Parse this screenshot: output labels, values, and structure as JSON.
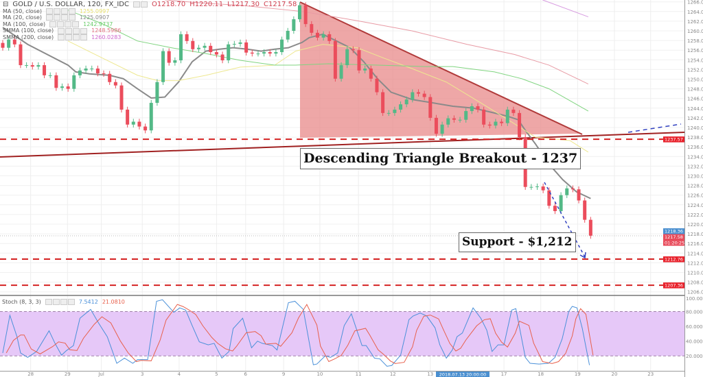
{
  "header": {
    "symbol": "GOLD / U.S. DOLLAR, 120, FX_IDC",
    "open": "O1218.70",
    "high": "H1220.11",
    "low": "L1217.30",
    "close": "C1217.58"
  },
  "indicators": [
    {
      "label": "MA (50, close)",
      "value": "1255.0997",
      "color": "#e8e070"
    },
    {
      "label": "MA (20, close)",
      "value": "1225.0907",
      "color": "#888888"
    },
    {
      "label": "MA (100, close)",
      "value": "1242.9737",
      "color": "#66cc66"
    },
    {
      "label": "SMMA (100, close)",
      "value": "1248.5986",
      "color": "#e07080"
    },
    {
      "label": "SMMA (200, close)",
      "value": "1260.0283",
      "color": "#cc66cc"
    }
  ],
  "stoch": {
    "label": "Stoch (8, 3, 3)",
    "k_value": "7.5412",
    "d_value": "21.0810",
    "k_color": "#4a90d9",
    "d_color": "#e8604c",
    "band_color": "#e6c8f8"
  },
  "annotations": {
    "triangle_label": "Descending Triangle Breakout - 1237",
    "support_label": "Support - $1,212"
  },
  "price_labels": [
    {
      "text": "1237.57",
      "price": 1237.57,
      "color": "#e8202a"
    },
    {
      "text": "1218.36",
      "price": 1218.36,
      "color": "#4a8fd0"
    },
    {
      "text": "1217.58",
      "price": 1217.58,
      "color": "#e84a5a"
    },
    {
      "text": "01:20:25",
      "price": 1216.5,
      "color": "#e84a5a"
    },
    {
      "text": "1212.76",
      "price": 1212.76,
      "color": "#e8202a"
    },
    {
      "text": "1207.36",
      "price": 1207.36,
      "color": "#e8202a"
    }
  ],
  "crosshair_label": "2018.07.13 20:00:00",
  "colors": {
    "up": "#53b987",
    "down": "#eb4d5c",
    "triangle_fill": "#e88a8a",
    "line_red": "#a02020",
    "dash_blue": "#3040c0"
  },
  "chart_data": {
    "type": "candlestick",
    "title": "GOLD / U.S. DOLLAR, 120, FX_IDC",
    "ylim": [
      1205,
      1267
    ],
    "y_ticks": [
      1206,
      1208,
      1210,
      1212,
      1214,
      1216,
      1218,
      1220,
      1222,
      1224,
      1226,
      1228,
      1230,
      1232,
      1234,
      1236,
      1238,
      1240,
      1242,
      1244,
      1246,
      1248,
      1250,
      1252,
      1254,
      1256,
      1258,
      1260,
      1262,
      1264,
      1266
    ],
    "x_ticks": [
      {
        "label": "28",
        "bar": 4.7
      },
      {
        "label": "29",
        "bar": 10.9
      },
      {
        "label": "Jul",
        "bar": 16.6
      },
      {
        "label": "3",
        "bar": 23.5
      },
      {
        "label": "4",
        "bar": 29.7
      },
      {
        "label": "5",
        "bar": 36
      },
      {
        "label": "6",
        "bar": 40.9
      },
      {
        "label": "9",
        "bar": 47.3
      },
      {
        "label": "10",
        "bar": 53.4
      },
      {
        "label": "11",
        "bar": 59.9
      },
      {
        "label": "12",
        "bar": 65.7
      },
      {
        "label": "13",
        "bar": 72
      },
      {
        "label": "17",
        "bar": 84.4
      },
      {
        "label": "18",
        "bar": 90.6
      },
      {
        "label": "19",
        "bar": 96.8
      },
      {
        "label": "20",
        "bar": 103
      },
      {
        "label": "23",
        "bar": 109.1
      }
    ],
    "closes": [
      1256.5,
      1258.2,
      1257.2,
      1252.9,
      1252.9,
      1252.6,
      1252.9,
      1250.8,
      1250.8,
      1248.2,
      1248.5,
      1248,
      1250.8,
      1251.8,
      1252.2,
      1252.2,
      1251.2,
      1251.1,
      1249.4,
      1248.7,
      1243.7,
      1240.6,
      1241.2,
      1240.2,
      1239.4,
      1245.1,
      1249.4,
      1255.8,
      1253.4,
      1253.9,
      1259.3,
      1257.9,
      1256.2,
      1256.5,
      1256.9,
      1255.6,
      1255.1,
      1253.9,
      1257.2,
      1257.3,
      1257.6,
      1255.5,
      1255.3,
      1255.3,
      1255.6,
      1255.3,
      1255.6,
      1258.2,
      1260,
      1262.4,
      1265.3,
      1261.4,
      1259.6,
      1258.6,
      1259.3,
      1257.9,
      1250.1,
      1252.9,
      1256.2,
      1256,
      1251.8,
      1252.2,
      1250.1,
      1247.3,
      1243,
      1243,
      1243.7,
      1244.8,
      1245.8,
      1247.3,
      1247,
      1246.3,
      1242,
      1238.7,
      1240.6,
      1241.9,
      1241.6,
      1241.6,
      1243.4,
      1244.4,
      1243.7,
      1240.6,
      1240.4,
      1241.2,
      1240.9,
      1243.7,
      1243,
      1238,
      1227.7,
      1227.7,
      1227.8,
      1227,
      1223.8,
      1222.7,
      1226,
      1227.4,
      1227.2,
      1224.9,
      1220.9,
      1217.58
    ],
    "moving_averages": [
      {
        "name": "MA (20, close)",
        "color": "#8a8a8a",
        "points": [
          [
            0,
            1260.7
          ],
          [
            4.2,
            1257.2
          ],
          [
            11,
            1252.9
          ],
          [
            12.3,
            1251.5
          ],
          [
            14.6,
            1251.1
          ],
          [
            18,
            1250.8
          ],
          [
            20.3,
            1250.1
          ],
          [
            22.7,
            1248
          ],
          [
            25,
            1246.1
          ],
          [
            27.3,
            1246.3
          ],
          [
            29.6,
            1249.4
          ],
          [
            31.9,
            1253.6
          ],
          [
            34.2,
            1255.8
          ],
          [
            36.5,
            1256.2
          ],
          [
            38.8,
            1256.5
          ],
          [
            41.2,
            1256.2
          ],
          [
            43.5,
            1255.8
          ],
          [
            45.8,
            1256.2
          ],
          [
            48.1,
            1256.5
          ],
          [
            50.4,
            1257.6
          ],
          [
            51.6,
            1258.6
          ],
          [
            53.9,
            1259.3
          ],
          [
            56.2,
            1257.9
          ],
          [
            58.5,
            1256.5
          ],
          [
            60.8,
            1253.6
          ],
          [
            63.1,
            1250.1
          ],
          [
            65.4,
            1247.3
          ],
          [
            68.9,
            1245.8
          ],
          [
            72.4,
            1245.1
          ],
          [
            75.8,
            1244.4
          ],
          [
            79.3,
            1244
          ],
          [
            82.8,
            1243
          ],
          [
            85.1,
            1242.3
          ],
          [
            86.8,
            1241.6
          ],
          [
            88,
            1239.4
          ],
          [
            89.7,
            1236.6
          ],
          [
            92,
            1232.4
          ],
          [
            94.3,
            1229.2
          ],
          [
            96.6,
            1226.7
          ],
          [
            99,
            1225.3
          ]
        ]
      },
      {
        "name": "MA (50, close)",
        "color": "#eee890",
        "points": [
          [
            11,
            1257.9
          ],
          [
            16.9,
            1254.3
          ],
          [
            22.7,
            1250.8
          ],
          [
            26.1,
            1249.7
          ],
          [
            29.6,
            1249.7
          ],
          [
            34.2,
            1250.8
          ],
          [
            40,
            1252.5
          ],
          [
            45.8,
            1252.9
          ],
          [
            49.3,
            1255.8
          ],
          [
            53.9,
            1257.2
          ],
          [
            59.7,
            1256.5
          ],
          [
            64.3,
            1254.3
          ],
          [
            68.9,
            1252.2
          ],
          [
            74.7,
            1249.4
          ],
          [
            80.5,
            1245.1
          ],
          [
            85.1,
            1241.6
          ],
          [
            89.7,
            1238
          ],
          [
            95.5,
            1237.3
          ],
          [
            98.6,
            1234.9
          ]
        ]
      },
      {
        "name": "MA (100, close)",
        "color": "#7fd47f",
        "points": [
          [
            11,
            1264.3
          ],
          [
            16.9,
            1261.4
          ],
          [
            22.7,
            1257.9
          ],
          [
            28.4,
            1256.5
          ],
          [
            34.2,
            1255.3
          ],
          [
            40,
            1253.9
          ],
          [
            45.8,
            1252.9
          ],
          [
            49.3,
            1252.9
          ],
          [
            54.8,
            1253.2
          ],
          [
            63.1,
            1252.9
          ],
          [
            71.2,
            1252.6
          ],
          [
            75.8,
            1252.6
          ],
          [
            82.8,
            1251.5
          ],
          [
            87.4,
            1250.1
          ],
          [
            92,
            1248
          ],
          [
            98.6,
            1243.4
          ]
        ]
      },
      {
        "name": "SMMA (100, close)",
        "color": "#e89aa4",
        "points": [
          [
            27.3,
            1266.4
          ],
          [
            34.2,
            1265.7
          ],
          [
            40,
            1265.3
          ],
          [
            48.1,
            1264.3
          ],
          [
            50.4,
            1264
          ],
          [
            53.9,
            1263.3
          ],
          [
            59.7,
            1262.1
          ],
          [
            68.9,
            1260
          ],
          [
            78.2,
            1257.2
          ],
          [
            86.2,
            1255.1
          ],
          [
            92,
            1252.9
          ],
          [
            98.6,
            1249
          ]
        ]
      },
      {
        "name": "SMMA (200, close)",
        "color": "#d79ae0",
        "points": [
          [
            90.9,
            1266.4
          ],
          [
            98.6,
            1262.9
          ]
        ]
      }
    ],
    "stochastic": {
      "ylim": [
        0,
        100
      ],
      "y_ticks": [
        20,
        40,
        60,
        80,
        100
      ],
      "bands": [
        20,
        80
      ],
      "k": [
        [
          0,
          24
        ],
        [
          1.2,
          75
        ],
        [
          2.4,
          46
        ],
        [
          3,
          24
        ],
        [
          4.2,
          18
        ],
        [
          5.7,
          26
        ],
        [
          7.8,
          54
        ],
        [
          8.8,
          37
        ],
        [
          9.9,
          21
        ],
        [
          10.7,
          27
        ],
        [
          11.9,
          34
        ],
        [
          13,
          71
        ],
        [
          14.8,
          83
        ],
        [
          16.1,
          65
        ],
        [
          17.6,
          46
        ],
        [
          19.2,
          10
        ],
        [
          20.5,
          17
        ],
        [
          21.9,
          10
        ],
        [
          22.7,
          15
        ],
        [
          24.4,
          15
        ],
        [
          25.9,
          94
        ],
        [
          26.9,
          96
        ],
        [
          28.8,
          79
        ],
        [
          29.8,
          85
        ],
        [
          30.8,
          82
        ],
        [
          31.9,
          61
        ],
        [
          33.1,
          39
        ],
        [
          34.6,
          35
        ],
        [
          35.6,
          37
        ],
        [
          36.9,
          17
        ],
        [
          38.1,
          26
        ],
        [
          38.8,
          57
        ],
        [
          40.4,
          71
        ],
        [
          41.9,
          31
        ],
        [
          42.9,
          40
        ],
        [
          43.7,
          37
        ],
        [
          45.4,
          34
        ],
        [
          46.2,
          28
        ],
        [
          48.1,
          92
        ],
        [
          49.2,
          94
        ],
        [
          50.6,
          83
        ],
        [
          52.3,
          8
        ],
        [
          52.9,
          9
        ],
        [
          54.3,
          20
        ],
        [
          55.2,
          18
        ],
        [
          56.4,
          24
        ],
        [
          57.5,
          61
        ],
        [
          58.7,
          77
        ],
        [
          60.5,
          34
        ],
        [
          61.2,
          34
        ],
        [
          62.6,
          17
        ],
        [
          63.5,
          16
        ],
        [
          64.7,
          6
        ],
        [
          65.5,
          7
        ],
        [
          67,
          21
        ],
        [
          68.4,
          69
        ],
        [
          69.1,
          74
        ],
        [
          70.3,
          78
        ],
        [
          71.4,
          74
        ],
        [
          72.8,
          58
        ],
        [
          73.6,
          35
        ],
        [
          74.7,
          17
        ],
        [
          75.7,
          28
        ],
        [
          76.5,
          46
        ],
        [
          77.4,
          51
        ],
        [
          79.2,
          85
        ],
        [
          80.5,
          71
        ],
        [
          81.5,
          55
        ],
        [
          82.4,
          26
        ],
        [
          83.4,
          35
        ],
        [
          84.4,
          35
        ],
        [
          85.7,
          82
        ],
        [
          86.4,
          84
        ],
        [
          88,
          18
        ],
        [
          88.8,
          10
        ],
        [
          90.3,
          9
        ],
        [
          91.9,
          10
        ],
        [
          93,
          18
        ],
        [
          94.2,
          43
        ],
        [
          95.3,
          80
        ],
        [
          95.9,
          87
        ],
        [
          96.7,
          85
        ],
        [
          97.6,
          57
        ],
        [
          98.8,
          7.5
        ]
      ]
    }
  }
}
